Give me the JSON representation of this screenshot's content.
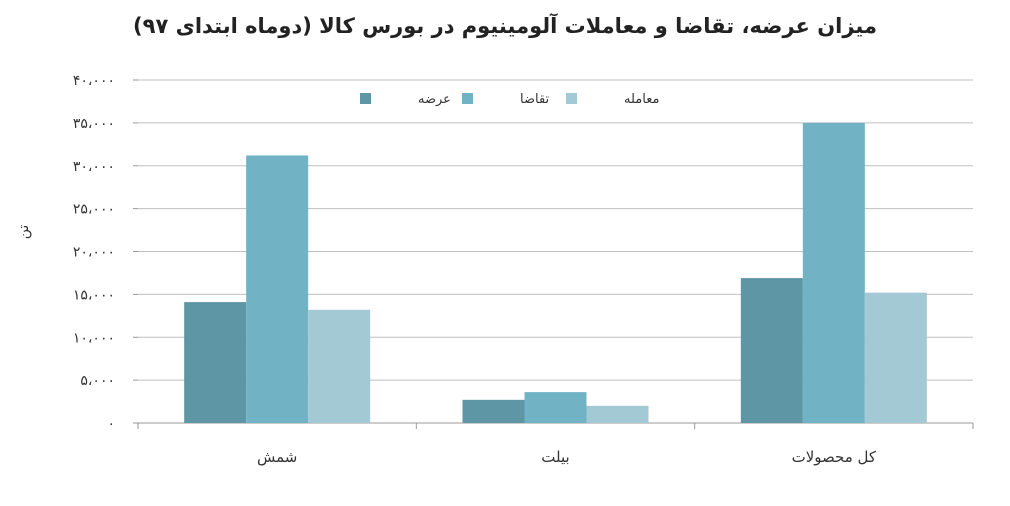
{
  "chart_data": {
    "type": "bar",
    "title": "میزان عرضه، تقاضا و معاملات آلومینیوم در بورس کالا (دوماه ابتدای ۹۷)",
    "ylabel": "تن",
    "categories": [
      "شمش",
      "بیلت",
      "کل محصولات"
    ],
    "ylim": [
      0,
      40000
    ],
    "yticks": [
      0,
      5000,
      10000,
      15000,
      20000,
      25000,
      30000,
      35000,
      40000
    ],
    "ytick_labels": [
      "۰",
      "۵،۰۰۰",
      "۱۰،۰۰۰",
      "۱۵،۰۰۰",
      "۲۰،۰۰۰",
      "۲۵،۰۰۰",
      "۳۰،۰۰۰",
      "۳۵،۰۰۰",
      "۴۰،۰۰۰"
    ],
    "grid": true,
    "legend_position": "top-center",
    "series": [
      {
        "name": "عرضه",
        "color": "#5f96a6",
        "values": [
          14100,
          2700,
          16900
        ]
      },
      {
        "name": "تقاضا",
        "color": "#71b2c5",
        "values": [
          31200,
          3600,
          35000
        ]
      },
      {
        "name": "معامله",
        "color": "#a3c9d4",
        "values": [
          13200,
          2000,
          15200
        ]
      }
    ]
  }
}
